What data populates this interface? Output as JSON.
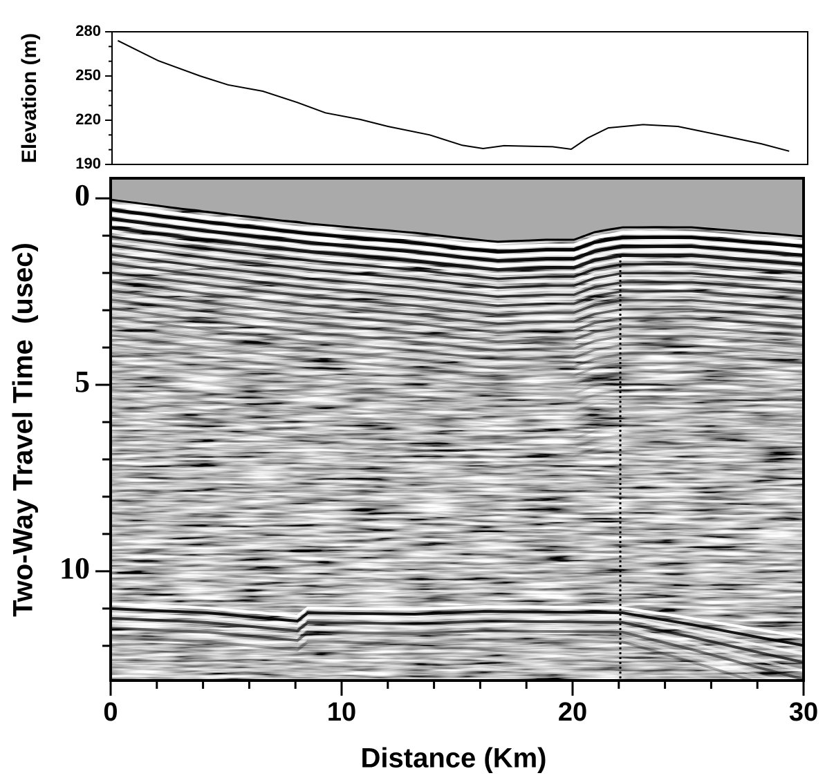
{
  "chart_data": [
    {
      "type": "line",
      "ylabel": "Elevation (m)",
      "color": "#000000",
      "x": [
        0.25,
        2,
        3.8,
        5,
        6.5,
        8,
        9.2,
        10.7,
        11.9,
        13.7,
        15.1,
        16,
        16.9,
        19,
        19.8,
        20.5,
        21.4,
        22.9,
        24.4,
        26.5,
        28,
        29.2
      ],
      "values": [
        274,
        260.3,
        250,
        244,
        239.7,
        232,
        225,
        220.5,
        215.8,
        210,
        203,
        200.8,
        202.7,
        202,
        200.3,
        207.8,
        214.8,
        217,
        215.8,
        209,
        204,
        199
      ],
      "xlim": [
        0,
        30
      ],
      "ylim": [
        190,
        280
      ],
      "yticks": [
        190,
        220,
        250,
        280
      ],
      "yminorticks": [
        200,
        210,
        230,
        240,
        260,
        270
      ]
    },
    {
      "type": "radargram",
      "xlabel": "Distance (Km)",
      "ylabel": "Two-Way Travel Time  (usec)",
      "xlim": [
        0,
        30
      ],
      "xticks": [
        0,
        10,
        20,
        30
      ],
      "xminorticks": [
        2,
        4,
        6,
        8,
        12,
        14,
        16,
        18,
        22,
        24,
        26,
        28
      ],
      "ylim": [
        -0.54,
        12.93
      ],
      "y_inverted": true,
      "yticks": [
        0,
        5,
        10
      ],
      "yminorticks": [
        1,
        2,
        3,
        4,
        6,
        7,
        8,
        9,
        11,
        12
      ]
    }
  ]
}
